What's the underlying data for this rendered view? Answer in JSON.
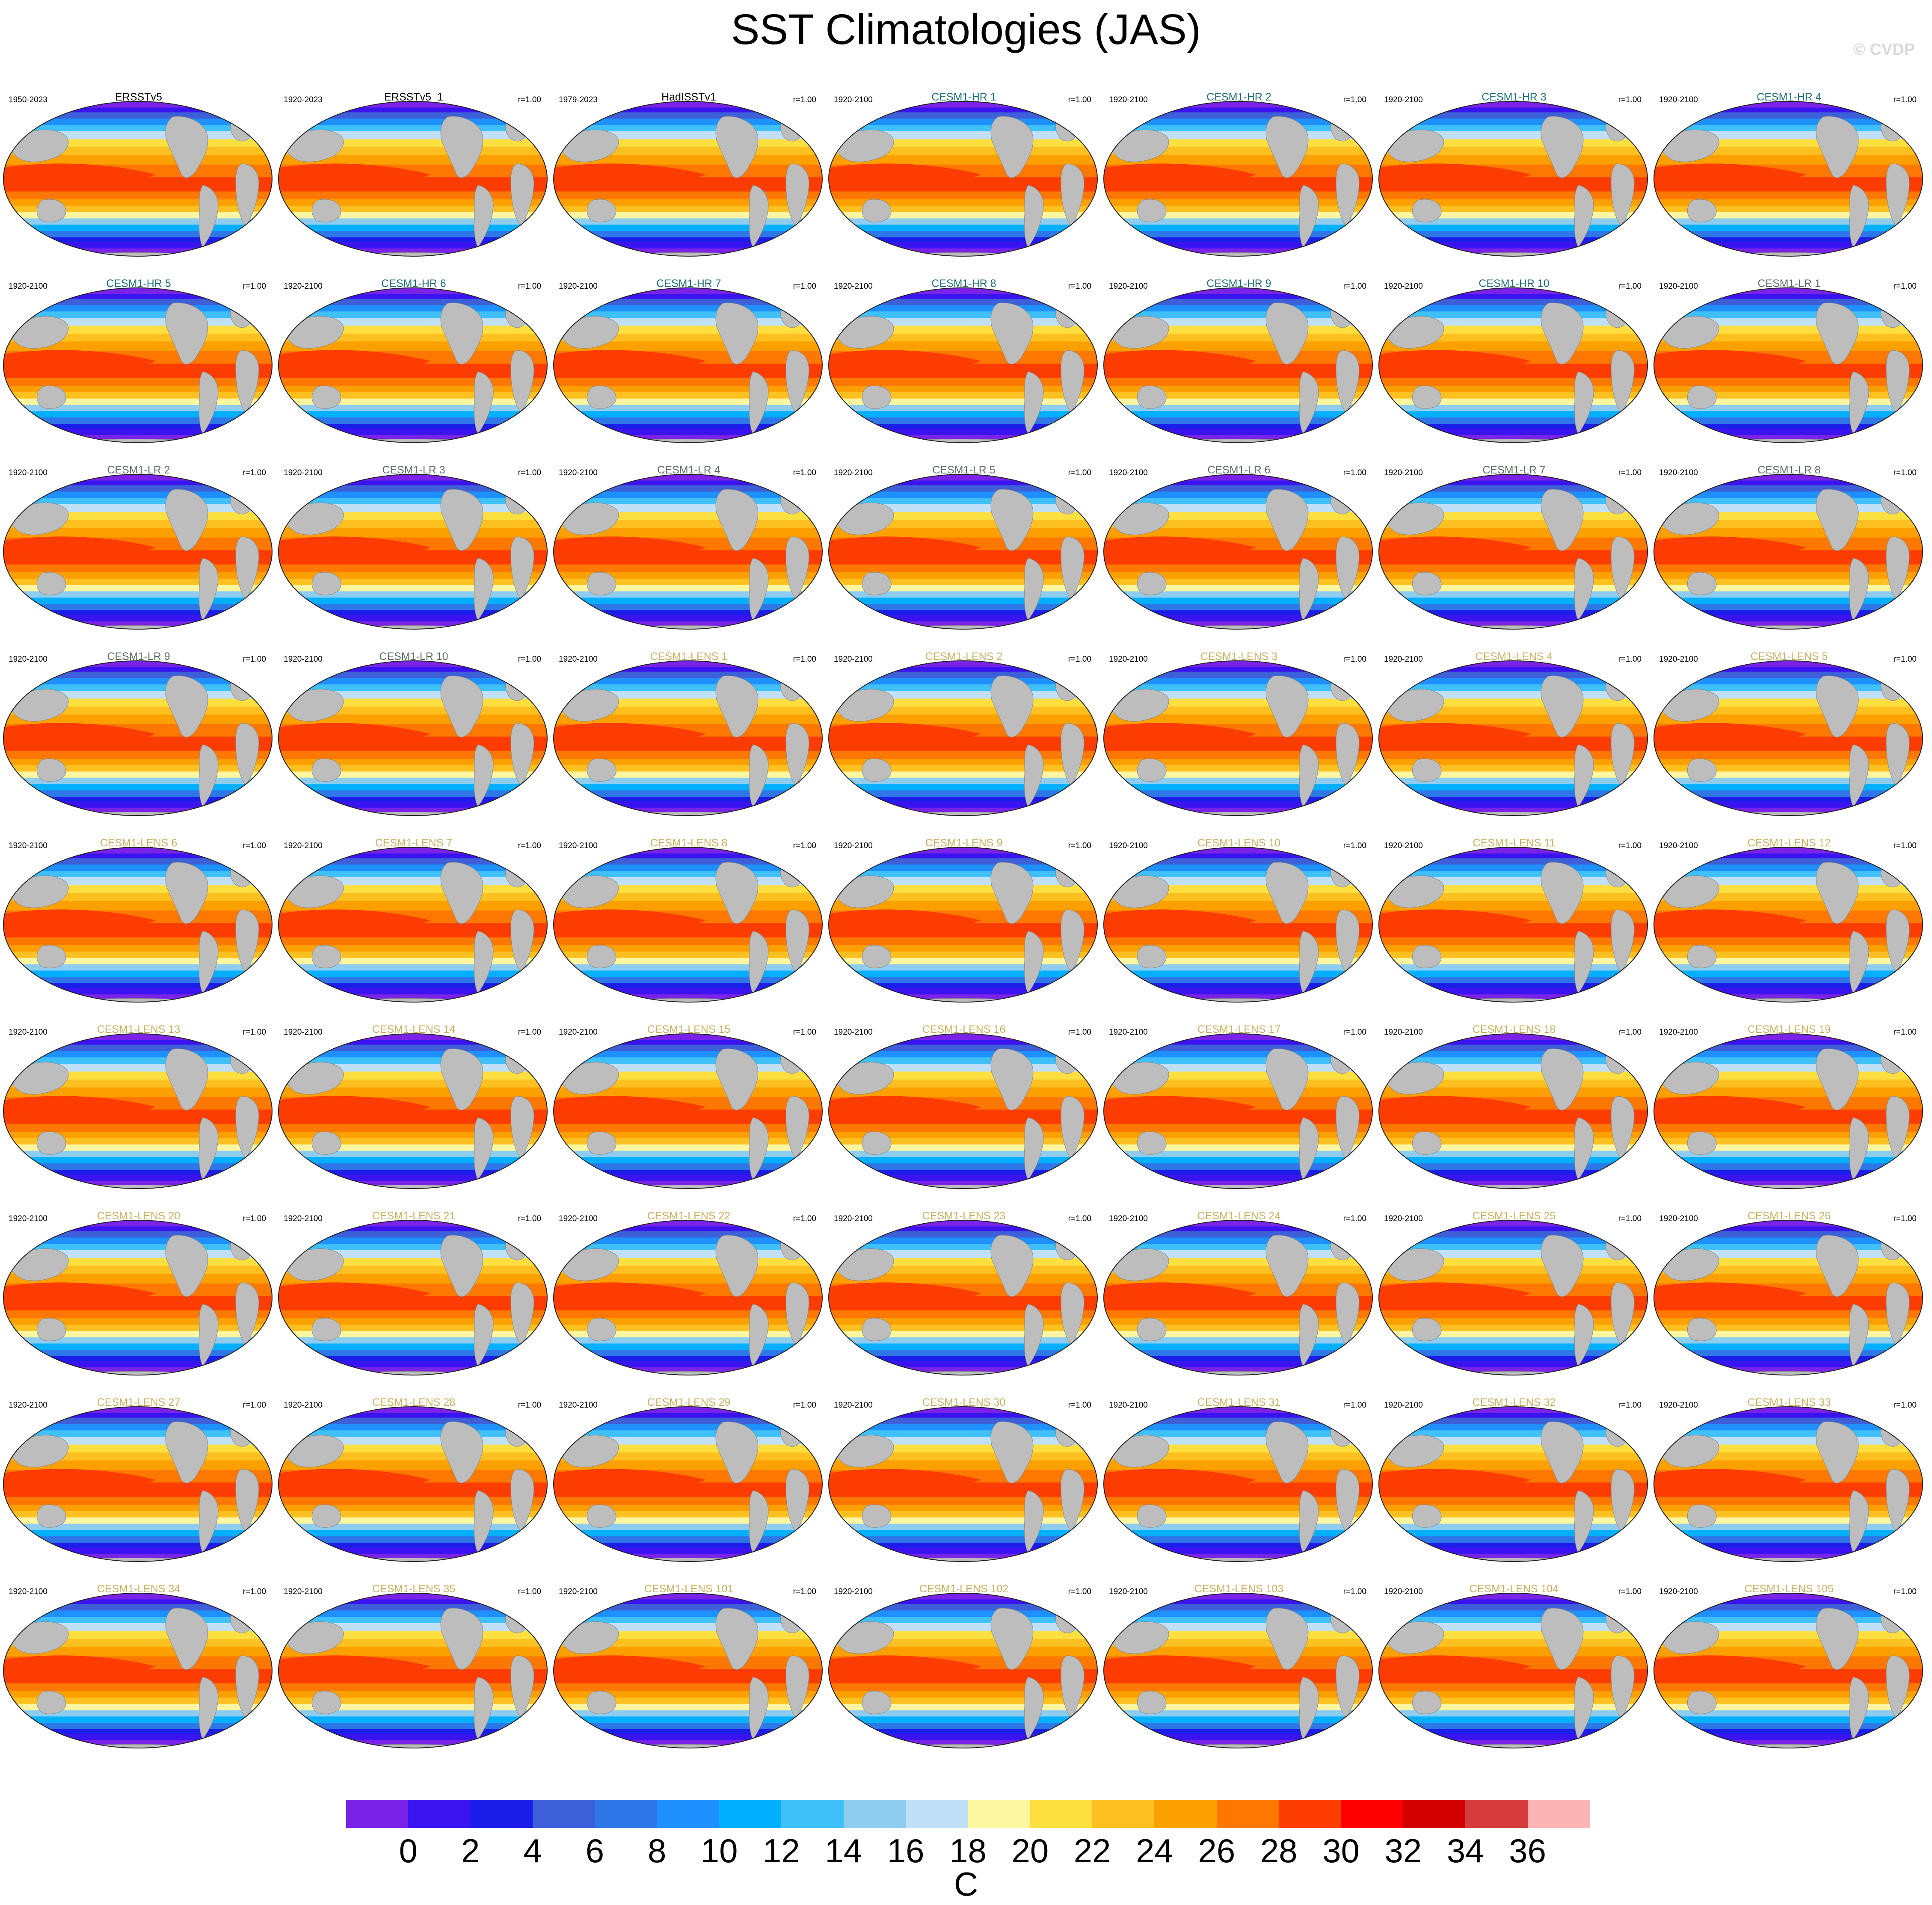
{
  "title": "SST Climatologies (JAS)",
  "watermark": "© CVDP",
  "colors": {
    "hr": "#1f6e7a",
    "lr": "#5a6e60",
    "lens": "#c8b062",
    "obs": "#000000",
    "land": "#bdbdbd"
  },
  "panels": [
    {
      "name": "ERSSTv5",
      "period": "1950-2023",
      "corr": "",
      "group": "obs"
    },
    {
      "name": "ERSSTv5_1",
      "period": "1920-2023",
      "corr": "r=1.00",
      "group": "obs"
    },
    {
      "name": "HadISSTv1",
      "period": "1979-2023",
      "corr": "r=1.00",
      "group": "obs"
    },
    {
      "name": "CESM1-HR 1",
      "period": "1920-2100",
      "corr": "r=1.00",
      "group": "hr"
    },
    {
      "name": "CESM1-HR 2",
      "period": "1920-2100",
      "corr": "r=1.00",
      "group": "hr"
    },
    {
      "name": "CESM1-HR 3",
      "period": "1920-2100",
      "corr": "r=1.00",
      "group": "hr"
    },
    {
      "name": "CESM1-HR 4",
      "period": "1920-2100",
      "corr": "r=1.00",
      "group": "hr"
    },
    {
      "name": "CESM1-HR 5",
      "period": "1920-2100",
      "corr": "r=1.00",
      "group": "hr"
    },
    {
      "name": "CESM1-HR 6",
      "period": "1920-2100",
      "corr": "r=1.00",
      "group": "hr"
    },
    {
      "name": "CESM1-HR 7",
      "period": "1920-2100",
      "corr": "r=1.00",
      "group": "hr"
    },
    {
      "name": "CESM1-HR 8",
      "period": "1920-2100",
      "corr": "r=1.00",
      "group": "hr"
    },
    {
      "name": "CESM1-HR 9",
      "period": "1920-2100",
      "corr": "r=1.00",
      "group": "hr"
    },
    {
      "name": "CESM1-HR 10",
      "period": "1920-2100",
      "corr": "r=1.00",
      "group": "hr"
    },
    {
      "name": "CESM1-LR 1",
      "period": "1920-2100",
      "corr": "r=1.00",
      "group": "lr"
    },
    {
      "name": "CESM1-LR 2",
      "period": "1920-2100",
      "corr": "r=1.00",
      "group": "lr"
    },
    {
      "name": "CESM1-LR 3",
      "period": "1920-2100",
      "corr": "r=1.00",
      "group": "lr"
    },
    {
      "name": "CESM1-LR 4",
      "period": "1920-2100",
      "corr": "r=1.00",
      "group": "lr"
    },
    {
      "name": "CESM1-LR 5",
      "period": "1920-2100",
      "corr": "r=1.00",
      "group": "lr"
    },
    {
      "name": "CESM1-LR 6",
      "period": "1920-2100",
      "corr": "r=1.00",
      "group": "lr"
    },
    {
      "name": "CESM1-LR 7",
      "period": "1920-2100",
      "corr": "r=1.00",
      "group": "lr"
    },
    {
      "name": "CESM1-LR 8",
      "period": "1920-2100",
      "corr": "r=1.00",
      "group": "lr"
    },
    {
      "name": "CESM1-LR 9",
      "period": "1920-2100",
      "corr": "r=1.00",
      "group": "lr"
    },
    {
      "name": "CESM1-LR 10",
      "period": "1920-2100",
      "corr": "r=1.00",
      "group": "lr"
    },
    {
      "name": "CESM1-LENS 1",
      "period": "1920-2100",
      "corr": "r=1.00",
      "group": "lens"
    },
    {
      "name": "CESM1-LENS 2",
      "period": "1920-2100",
      "corr": "r=1.00",
      "group": "lens"
    },
    {
      "name": "CESM1-LENS 3",
      "period": "1920-2100",
      "corr": "r=1.00",
      "group": "lens"
    },
    {
      "name": "CESM1-LENS 4",
      "period": "1920-2100",
      "corr": "r=1.00",
      "group": "lens"
    },
    {
      "name": "CESM1-LENS 5",
      "period": "1920-2100",
      "corr": "r=1.00",
      "group": "lens"
    },
    {
      "name": "CESM1-LENS 6",
      "period": "1920-2100",
      "corr": "r=1.00",
      "group": "lens"
    },
    {
      "name": "CESM1-LENS 7",
      "period": "1920-2100",
      "corr": "r=1.00",
      "group": "lens"
    },
    {
      "name": "CESM1-LENS 8",
      "period": "1920-2100",
      "corr": "r=1.00",
      "group": "lens"
    },
    {
      "name": "CESM1-LENS 9",
      "period": "1920-2100",
      "corr": "r=1.00",
      "group": "lens"
    },
    {
      "name": "CESM1-LENS 10",
      "period": "1920-2100",
      "corr": "r=1.00",
      "group": "lens"
    },
    {
      "name": "CESM1-LENS 11",
      "period": "1920-2100",
      "corr": "r=1.00",
      "group": "lens"
    },
    {
      "name": "CESM1-LENS 12",
      "period": "1920-2100",
      "corr": "r=1.00",
      "group": "lens"
    },
    {
      "name": "CESM1-LENS 13",
      "period": "1920-2100",
      "corr": "r=1.00",
      "group": "lens"
    },
    {
      "name": "CESM1-LENS 14",
      "period": "1920-2100",
      "corr": "r=1.00",
      "group": "lens"
    },
    {
      "name": "CESM1-LENS 15",
      "period": "1920-2100",
      "corr": "r=1.00",
      "group": "lens"
    },
    {
      "name": "CESM1-LENS 16",
      "period": "1920-2100",
      "corr": "r=1.00",
      "group": "lens"
    },
    {
      "name": "CESM1-LENS 17",
      "period": "1920-2100",
      "corr": "r=1.00",
      "group": "lens"
    },
    {
      "name": "CESM1-LENS 18",
      "period": "1920-2100",
      "corr": "r=1.00",
      "group": "lens"
    },
    {
      "name": "CESM1-LENS 19",
      "period": "1920-2100",
      "corr": "r=1.00",
      "group": "lens"
    },
    {
      "name": "CESM1-LENS 20",
      "period": "1920-2100",
      "corr": "r=1.00",
      "group": "lens"
    },
    {
      "name": "CESM1-LENS 21",
      "period": "1920-2100",
      "corr": "r=1.00",
      "group": "lens"
    },
    {
      "name": "CESM1-LENS 22",
      "period": "1920-2100",
      "corr": "r=1.00",
      "group": "lens"
    },
    {
      "name": "CESM1-LENS 23",
      "period": "1920-2100",
      "corr": "r=1.00",
      "group": "lens"
    },
    {
      "name": "CESM1-LENS 24",
      "period": "1920-2100",
      "corr": "r=1.00",
      "group": "lens"
    },
    {
      "name": "CESM1-LENS 25",
      "period": "1920-2100",
      "corr": "r=1.00",
      "group": "lens"
    },
    {
      "name": "CESM1-LENS 26",
      "period": "1920-2100",
      "corr": "r=1.00",
      "group": "lens"
    },
    {
      "name": "CESM1-LENS 27",
      "period": "1920-2100",
      "corr": "r=1.00",
      "group": "lens"
    },
    {
      "name": "CESM1-LENS 28",
      "period": "1920-2100",
      "corr": "r=1.00",
      "group": "lens"
    },
    {
      "name": "CESM1-LENS 29",
      "period": "1920-2100",
      "corr": "r=1.00",
      "group": "lens"
    },
    {
      "name": "CESM1-LENS 30",
      "period": "1920-2100",
      "corr": "r=1.00",
      "group": "lens"
    },
    {
      "name": "CESM1-LENS 31",
      "period": "1920-2100",
      "corr": "r=1.00",
      "group": "lens"
    },
    {
      "name": "CESM1-LENS 32",
      "period": "1920-2100",
      "corr": "r=1.00",
      "group": "lens"
    },
    {
      "name": "CESM1-LENS 33",
      "period": "1920-2100",
      "corr": "r=1.00",
      "group": "lens"
    },
    {
      "name": "CESM1-LENS 34",
      "period": "1920-2100",
      "corr": "r=1.00",
      "group": "lens"
    },
    {
      "name": "CESM1-LENS 35",
      "period": "1920-2100",
      "corr": "r=1.00",
      "group": "lens"
    },
    {
      "name": "CESM1-LENS 101",
      "period": "1920-2100",
      "corr": "r=1.00",
      "group": "lens"
    },
    {
      "name": "CESM1-LENS 102",
      "period": "1920-2100",
      "corr": "r=1.00",
      "group": "lens"
    },
    {
      "name": "CESM1-LENS 103",
      "period": "1920-2100",
      "corr": "r=1.00",
      "group": "lens"
    },
    {
      "name": "CESM1-LENS 104",
      "period": "1920-2100",
      "corr": "r=1.00",
      "group": "lens"
    },
    {
      "name": "CESM1-LENS 105",
      "period": "1920-2100",
      "corr": "r=1.00",
      "group": "lens"
    }
  ],
  "colorbar": {
    "units": "C",
    "ticks": [
      "0",
      "2",
      "4",
      "6",
      "8",
      "10",
      "12",
      "14",
      "16",
      "18",
      "20",
      "22",
      "24",
      "26",
      "28",
      "30",
      "32",
      "34",
      "36"
    ],
    "colors": [
      "#7a22e8",
      "#3a14f0",
      "#1a1ee8",
      "#3d5fd8",
      "#2e77e8",
      "#1e90ff",
      "#00b0ff",
      "#3fc0f8",
      "#8ecdf0",
      "#bfe0f7",
      "#fcf6a0",
      "#fde040",
      "#fcc020",
      "#fca000",
      "#fc7800",
      "#fc3c00",
      "#ff0000",
      "#d20000",
      "#d43c3c",
      "#fcb4b4"
    ]
  }
}
